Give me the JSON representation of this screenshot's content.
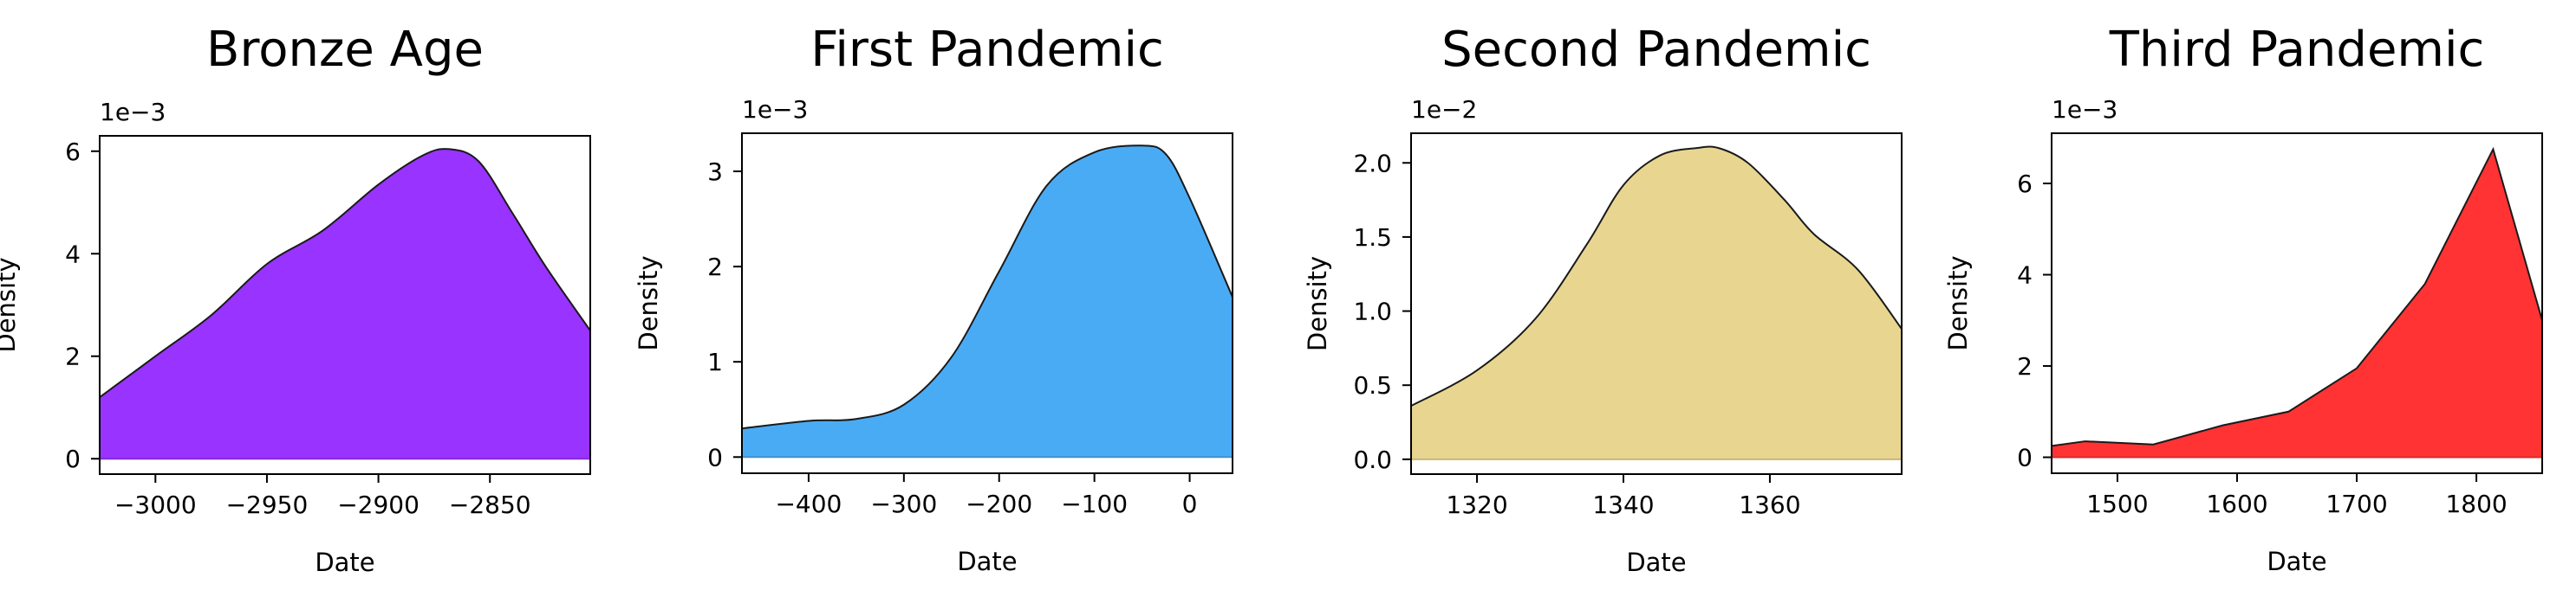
{
  "chart_data": [
    {
      "type": "area",
      "title": "Bronze Age",
      "xlabel": "Date",
      "ylabel": "Density",
      "y_scale_label": "1e−3",
      "xlim": [
        -3025,
        -2805
      ],
      "ylim": [
        -0.3,
        6.3
      ],
      "x_ticks": [
        -3000,
        -2950,
        -2900,
        -2850
      ],
      "x_tick_labels": [
        "−3000",
        "−2950",
        "−2900",
        "−2850"
      ],
      "y_ticks": [
        0,
        2,
        4,
        6
      ],
      "y_tick_labels": [
        "0",
        "2",
        "4",
        "6"
      ],
      "color": "#9933ff",
      "x": [
        -3025,
        -3000,
        -2975,
        -2950,
        -2925,
        -2900,
        -2880,
        -2868,
        -2855,
        -2840,
        -2825,
        -2805
      ],
      "y": [
        1.2,
        2.0,
        2.8,
        3.8,
        4.45,
        5.35,
        5.92,
        6.04,
        5.8,
        4.8,
        3.75,
        2.5
      ]
    },
    {
      "type": "area",
      "title": "First Pandemic",
      "xlabel": "Date",
      "ylabel": "Density",
      "y_scale_label": "1e−3",
      "xlim": [
        -470,
        45
      ],
      "ylim": [
        -0.17,
        3.4
      ],
      "x_ticks": [
        -400,
        -300,
        -200,
        -100,
        0
      ],
      "x_tick_labels": [
        "−400",
        "−300",
        "−200",
        "−100",
        "0"
      ],
      "y_ticks": [
        0,
        1,
        2,
        3
      ],
      "y_tick_labels": [
        "0",
        "1",
        "2",
        "3"
      ],
      "color": "#4aabf5",
      "x": [
        -470,
        -400,
        -350,
        -300,
        -250,
        -200,
        -150,
        -100,
        -50,
        -25,
        0,
        45
      ],
      "y": [
        0.3,
        0.38,
        0.4,
        0.55,
        1.05,
        1.95,
        2.85,
        3.2,
        3.27,
        3.18,
        2.72,
        1.68
      ]
    },
    {
      "type": "area",
      "title": "Second Pandemic",
      "xlabel": "Date",
      "ylabel": "Density",
      "y_scale_label": "1e−2",
      "xlim": [
        1311,
        1378
      ],
      "ylim": [
        -0.1,
        2.2
      ],
      "x_ticks": [
        1320,
        1340,
        1360
      ],
      "x_tick_labels": [
        "1320",
        "1340",
        "1360"
      ],
      "y_ticks": [
        0.0,
        0.5,
        1.0,
        1.5,
        2.0
      ],
      "y_tick_labels": [
        "0.0",
        "0.5",
        "1.0",
        "1.5",
        "2.0"
      ],
      "color": "#e8d690",
      "x": [
        1311,
        1320,
        1328,
        1335,
        1340,
        1345,
        1350,
        1353,
        1357,
        1362,
        1366,
        1372,
        1378
      ],
      "y": [
        0.36,
        0.6,
        0.95,
        1.45,
        1.85,
        2.05,
        2.1,
        2.1,
        2.0,
        1.75,
        1.52,
        1.28,
        0.88
      ]
    },
    {
      "type": "area",
      "title": "Third Pandemic",
      "xlabel": "Date",
      "ylabel": "Density",
      "y_scale_label": "1e−3",
      "xlim": [
        1445,
        1855
      ],
      "ylim": [
        -0.35,
        7.1
      ],
      "x_ticks": [
        1500,
        1600,
        1700,
        1800
      ],
      "x_tick_labels": [
        "1500",
        "1600",
        "1700",
        "1800"
      ],
      "y_ticks": [
        0,
        2,
        4,
        6
      ],
      "y_tick_labels": [
        "0",
        "2",
        "4",
        "6"
      ],
      "color": "#ff3333",
      "x": [
        1445,
        1473,
        1530,
        1588,
        1643,
        1700,
        1757,
        1814,
        1855
      ],
      "y": [
        0.25,
        0.35,
        0.28,
        0.7,
        1.0,
        1.95,
        3.8,
        6.75,
        3.0
      ]
    }
  ]
}
